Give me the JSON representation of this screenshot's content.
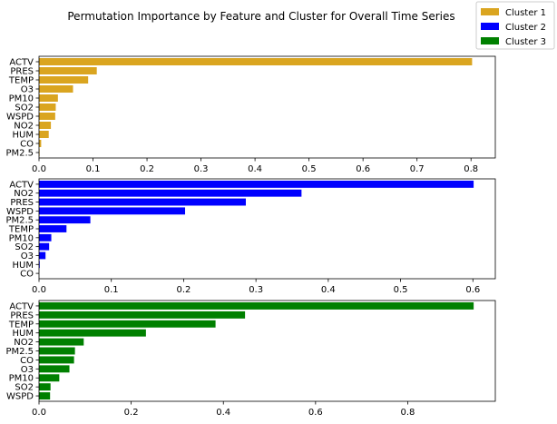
{
  "figure_title": "Permutation Importance by Feature and Cluster for Overall Time Series",
  "legend": [
    {
      "label": "Cluster 1",
      "color": "#DAA520"
    },
    {
      "label": "Cluster 2",
      "color": "#0000FF"
    },
    {
      "label": "Cluster 3",
      "color": "#008000"
    }
  ],
  "chart_data": [
    {
      "type": "bar",
      "orientation": "horizontal",
      "series_label": "Cluster 1",
      "color": "#DAA520",
      "categories": [
        "ACTV",
        "PRES",
        "TEMP",
        "O3",
        "PM10",
        "SO2",
        "WSPD",
        "NO2",
        "HUM",
        "CO",
        "PM2.5"
      ],
      "values": [
        0.802,
        0.107,
        0.091,
        0.063,
        0.035,
        0.031,
        0.03,
        0.022,
        0.018,
        0.004,
        0.001
      ],
      "xlim": [
        0,
        0.845
      ],
      "xticks": [
        0,
        0.1,
        0.2,
        0.3,
        0.4,
        0.5,
        0.6,
        0.7,
        0.8
      ],
      "xtick_labels": [
        "0.0",
        "0.1",
        "0.2",
        "0.3",
        "0.4",
        "0.5",
        "0.6",
        "0.7",
        "0.8"
      ],
      "grid": false
    },
    {
      "type": "bar",
      "orientation": "horizontal",
      "series_label": "Cluster 2",
      "color": "#0000FF",
      "categories": [
        "ACTV",
        "NO2",
        "PRES",
        "WSPD",
        "PM2.5",
        "TEMP",
        "PM10",
        "SO2",
        "O3",
        "HUM",
        "CO"
      ],
      "values": [
        0.601,
        0.363,
        0.286,
        0.202,
        0.071,
        0.038,
        0.017,
        0.014,
        0.009,
        0.001,
        0.0
      ],
      "xlim": [
        0,
        0.631
      ],
      "xticks": [
        0,
        0.1,
        0.2,
        0.3,
        0.4,
        0.5,
        0.6
      ],
      "xtick_labels": [
        "0.0",
        "0.1",
        "0.2",
        "0.3",
        "0.4",
        "0.5",
        "0.6"
      ],
      "grid": false
    },
    {
      "type": "bar",
      "orientation": "horizontal",
      "series_label": "Cluster 3",
      "color": "#008000",
      "categories": [
        "ACTV",
        "PRES",
        "TEMP",
        "HUM",
        "NO2",
        "PM2.5",
        "CO",
        "O3",
        "PM10",
        "SO2",
        "WSPD"
      ],
      "values": [
        0.943,
        0.447,
        0.383,
        0.232,
        0.097,
        0.078,
        0.076,
        0.066,
        0.044,
        0.025,
        0.024
      ],
      "xlim": [
        0,
        0.99
      ],
      "xticks": [
        0,
        0.2,
        0.4,
        0.6,
        0.8
      ],
      "xtick_labels": [
        "0.0",
        "0.2",
        "0.4",
        "0.6",
        "0.8"
      ],
      "grid": false
    }
  ]
}
